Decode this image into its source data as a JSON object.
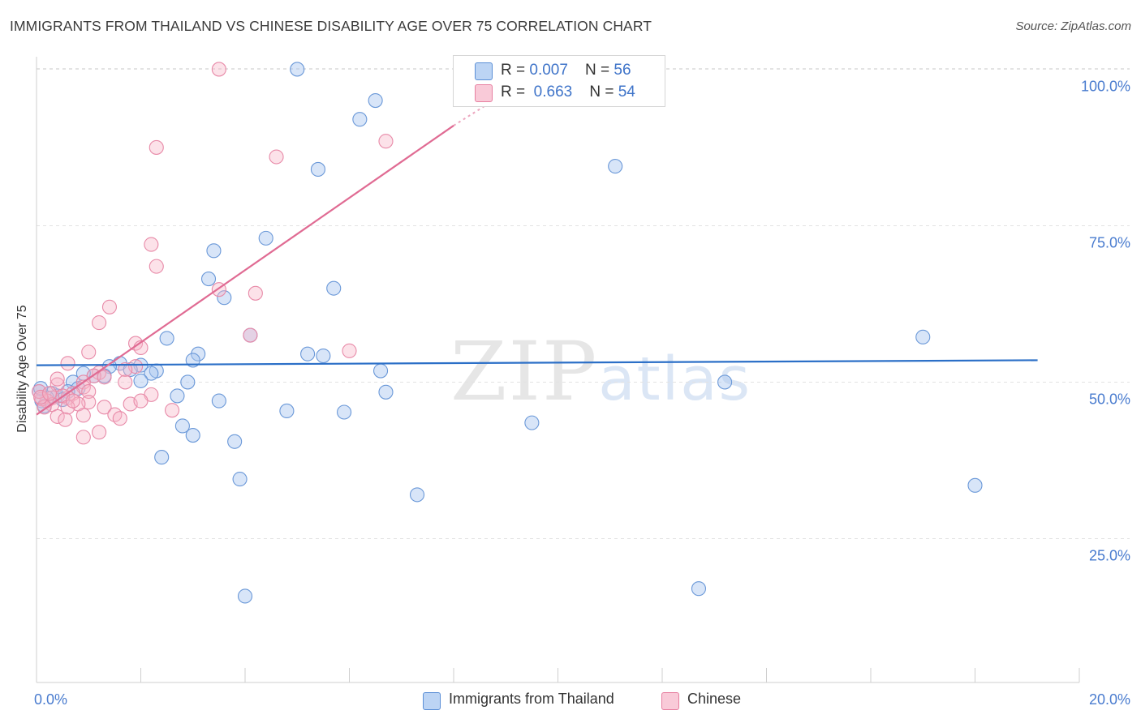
{
  "chart_data": {
    "type": "scatter",
    "title": "IMMIGRANTS FROM THAILAND VS CHINESE DISABILITY AGE OVER 75 CORRELATION CHART",
    "source": "Source: ZipAtlas.com",
    "xlabel": "",
    "ylabel": "Disability Age Over 75",
    "xlim": [
      0,
      20
    ],
    "ylim": [
      2,
      102
    ],
    "x_ticks": [
      {
        "value": 0,
        "label": "0.0%"
      },
      {
        "value": 20,
        "label": "20.0%"
      }
    ],
    "y_ticks": [
      {
        "value": 25,
        "label": "25.0%"
      },
      {
        "value": 50,
        "label": "50.0%"
      },
      {
        "value": 75,
        "label": "75.0%"
      },
      {
        "value": 100,
        "label": "100.0%"
      }
    ],
    "grid": true,
    "legend": [
      {
        "name": "Immigrants from Thailand",
        "r_label": "R = ",
        "r": "0.007",
        "n_label": "N = ",
        "n": "56",
        "color": "#a8c6f0",
        "edge": "#5b8fd6",
        "line": "#2b6fc7"
      },
      {
        "name": "Chinese",
        "r_label": "R = ",
        "r": "0.663",
        "n_label": "N = ",
        "n": "54",
        "color": "#f7b6c9",
        "edge": "#e77fa0",
        "line": "#e06b93"
      }
    ],
    "series": [
      {
        "name": "Immigrants from Thailand",
        "trend": {
          "x0": 0.0,
          "y0": 52.7,
          "x1": 19.2,
          "y1": 53.5
        },
        "points": [
          [
            5.0,
            100.0
          ],
          [
            6.5,
            95.0
          ],
          [
            6.2,
            92.0
          ],
          [
            5.4,
            84.0
          ],
          [
            11.1,
            84.5
          ],
          [
            4.4,
            73.0
          ],
          [
            3.4,
            71.0
          ],
          [
            3.3,
            66.5
          ],
          [
            5.7,
            65.0
          ],
          [
            3.6,
            63.5
          ],
          [
            2.5,
            57.0
          ],
          [
            4.1,
            57.5
          ],
          [
            17.0,
            57.2
          ],
          [
            3.1,
            54.5
          ],
          [
            5.2,
            54.5
          ],
          [
            5.5,
            54.2
          ],
          [
            3.0,
            53.5
          ],
          [
            1.6,
            53.0
          ],
          [
            2.0,
            52.7
          ],
          [
            1.4,
            52.5
          ],
          [
            1.8,
            52.0
          ],
          [
            2.3,
            51.8
          ],
          [
            6.6,
            51.8
          ],
          [
            2.2,
            51.4
          ],
          [
            1.3,
            51.0
          ],
          [
            1.1,
            51.0
          ],
          [
            0.9,
            51.4
          ],
          [
            2.0,
            50.2
          ],
          [
            0.7,
            50.0
          ],
          [
            2.9,
            50.0
          ],
          [
            13.2,
            50.0
          ],
          [
            0.8,
            49.0
          ],
          [
            0.6,
            48.5
          ],
          [
            0.3,
            48.2
          ],
          [
            0.4,
            47.8
          ],
          [
            2.7,
            47.8
          ],
          [
            0.2,
            47.5
          ],
          [
            0.5,
            47.2
          ],
          [
            0.1,
            47.0
          ],
          [
            0.05,
            48.5
          ],
          [
            6.7,
            48.4
          ],
          [
            3.5,
            47.0
          ],
          [
            0.15,
            46.2
          ],
          [
            4.8,
            45.4
          ],
          [
            5.9,
            45.2
          ],
          [
            2.8,
            43.0
          ],
          [
            9.5,
            43.5
          ],
          [
            3.0,
            41.5
          ],
          [
            3.8,
            40.5
          ],
          [
            2.4,
            38.0
          ],
          [
            3.9,
            34.5
          ],
          [
            7.3,
            32.0
          ],
          [
            18.0,
            33.5
          ],
          [
            4.0,
            15.8
          ],
          [
            12.7,
            17.0
          ],
          [
            0.08,
            49.0
          ]
        ]
      },
      {
        "name": "Chinese",
        "trend": {
          "x0": 0.0,
          "y0": 44.8,
          "x1": 8.0,
          "y1": 91.0,
          "dash_x1": 8.8,
          "dash_y1": 95.2
        },
        "points": [
          [
            3.5,
            100.0
          ],
          [
            6.7,
            88.5
          ],
          [
            2.3,
            87.5
          ],
          [
            4.6,
            86.0
          ],
          [
            2.2,
            72.0
          ],
          [
            2.3,
            68.5
          ],
          [
            4.2,
            64.2
          ],
          [
            3.5,
            64.8
          ],
          [
            1.4,
            62.0
          ],
          [
            1.2,
            59.5
          ],
          [
            4.1,
            57.5
          ],
          [
            1.9,
            56.2
          ],
          [
            2.0,
            55.5
          ],
          [
            1.0,
            54.8
          ],
          [
            6.0,
            55.0
          ],
          [
            0.6,
            53.0
          ],
          [
            1.9,
            52.5
          ],
          [
            1.7,
            52.0
          ],
          [
            1.2,
            51.5
          ],
          [
            1.1,
            51.0
          ],
          [
            0.9,
            50.0
          ],
          [
            1.7,
            50.0
          ],
          [
            0.9,
            49.2
          ],
          [
            0.4,
            49.6
          ],
          [
            0.4,
            50.5
          ],
          [
            1.0,
            48.5
          ],
          [
            0.7,
            48.2
          ],
          [
            0.6,
            47.5
          ],
          [
            2.2,
            48.0
          ],
          [
            0.5,
            47.8
          ],
          [
            0.3,
            47.5
          ],
          [
            0.2,
            47.0
          ],
          [
            0.1,
            47.3
          ],
          [
            0.3,
            46.4
          ],
          [
            1.0,
            46.8
          ],
          [
            1.8,
            46.5
          ],
          [
            2.0,
            47.0
          ],
          [
            0.8,
            46.5
          ],
          [
            0.6,
            46.0
          ],
          [
            1.3,
            46.0
          ],
          [
            2.6,
            45.5
          ],
          [
            0.4,
            44.5
          ],
          [
            0.05,
            48.5
          ],
          [
            0.15,
            46.0
          ],
          [
            0.9,
            44.7
          ],
          [
            1.5,
            44.8
          ],
          [
            0.55,
            44.0
          ],
          [
            1.6,
            44.2
          ],
          [
            1.2,
            42.0
          ],
          [
            0.9,
            41.2
          ],
          [
            0.08,
            47.6
          ],
          [
            0.25,
            48.2
          ],
          [
            1.3,
            50.8
          ],
          [
            0.7,
            47.0
          ]
        ]
      }
    ]
  },
  "watermark": {
    "zip": "ZIP",
    "atlas": "atlas"
  }
}
